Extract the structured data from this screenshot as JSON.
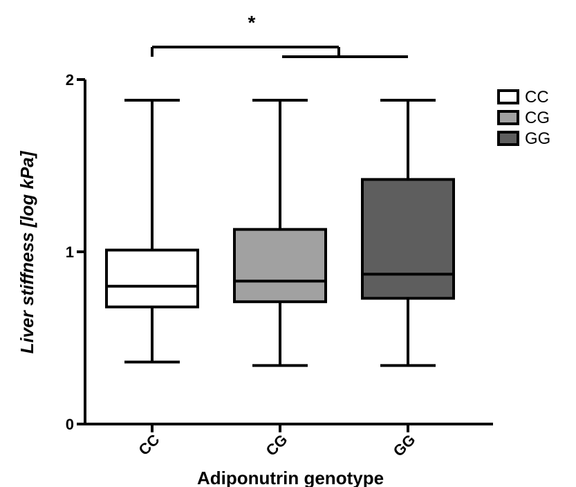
{
  "chart_data": {
    "type": "boxplot",
    "xlabel": "Adiponutrin genotype",
    "ylabel": "Liver stiffness  [log kPa]",
    "ylim": [
      0,
      2
    ],
    "yticks": [
      "0",
      "1",
      "2"
    ],
    "grid": false,
    "legend_position": "top-right",
    "categories": [
      "CC",
      "CG",
      "GG"
    ],
    "boxes": [
      {
        "name": "CC",
        "min": 0.36,
        "q1": 0.68,
        "median": 0.8,
        "q3": 1.01,
        "max": 1.88,
        "color": "#ffffff"
      },
      {
        "name": "CG",
        "min": 0.34,
        "q1": 0.71,
        "median": 0.83,
        "q3": 1.13,
        "max": 1.88,
        "color": "#a1a1a1"
      },
      {
        "name": "GG",
        "min": 0.34,
        "q1": 0.73,
        "median": 0.87,
        "q3": 1.42,
        "max": 1.88,
        "color": "#5e5e5e"
      }
    ],
    "significance": {
      "label": "*",
      "from_group": "CC",
      "to_groups": [
        "CG",
        "GG"
      ]
    }
  }
}
